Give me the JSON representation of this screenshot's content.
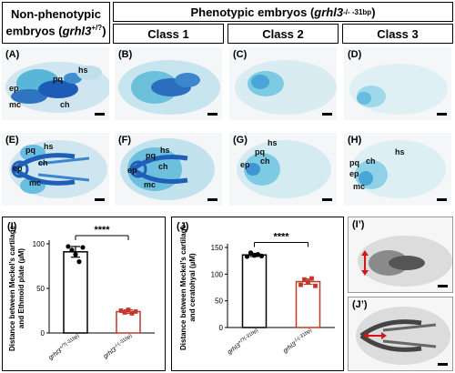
{
  "headers": {
    "non_phenotypic": "Non-phenotypic",
    "non_phenotypic_embryos": "embryos (",
    "non_phenotypic_gene": "grhl3",
    "non_phenotypic_sup": "+/?",
    "non_phenotypic_close": ")",
    "phenotypic_prefix": "Phenotypic embryos (",
    "phenotypic_gene": "grhl3",
    "phenotypic_sup": "-/- -31bp",
    "phenotypic_close": ")",
    "class1": "Class 1",
    "class2": "Class 2",
    "class3": "Class 3"
  },
  "panels": [
    {
      "label": "(A)",
      "annotations": [
        "ep",
        "pq",
        "hs",
        "mc",
        "ch"
      ]
    },
    {
      "label": "(B)",
      "annotations": []
    },
    {
      "label": "(C)",
      "annotations": []
    },
    {
      "label": "(D)",
      "annotations": []
    },
    {
      "label": "(E)",
      "annotations": [
        "hs",
        "pq",
        "ch",
        "ep",
        "mc"
      ]
    },
    {
      "label": "(F)",
      "annotations": [
        "hs",
        "pq",
        "ch",
        "ep",
        "mc"
      ]
    },
    {
      "label": "(G)",
      "annotations": [
        "hs",
        "pq",
        "ch",
        "ep"
      ]
    },
    {
      "label": "(H)",
      "annotations": [
        "hs",
        "pq",
        "ch",
        "ep",
        "mc"
      ]
    }
  ],
  "inset_labels": {
    "i_prime": "(I’)",
    "j_prime": "(J’)"
  },
  "chart_data": [
    {
      "type": "bar",
      "panel": "(I)",
      "ylabel": "Distance between Meckel’s cartilage and Ethmoid plate (µM)",
      "categories": [
        "grhl3+/?(-31bp)",
        "grhl3-/-(-31bp)"
      ],
      "category_gene": [
        "grhl3",
        "grhl3"
      ],
      "category_sup": [
        "+/?(-31bp)",
        "-/-(-31bp)"
      ],
      "values": [
        91,
        24
      ],
      "errors": [
        6,
        2
      ],
      "points": [
        [
          97,
          93,
          88,
          80,
          96
        ],
        [
          25,
          23,
          26,
          22,
          24
        ]
      ],
      "ylim": [
        0,
        100
      ],
      "yticks": [
        0,
        50,
        100
      ],
      "significance": "****",
      "colors": [
        "#000000",
        "#c0392b"
      ]
    },
    {
      "type": "bar",
      "panel": "(J)",
      "ylabel": "Distance between Meckel’s cartilage and ceratohyal (µM)",
      "categories": [
        "grhl3+/?(-31bp)",
        "grhl3-/-(-31bp)"
      ],
      "category_gene": [
        "grhl3",
        "grhl3"
      ],
      "category_sup": [
        "+/?(-31bp)",
        "-/-(-31bp)"
      ],
      "values": [
        136,
        86
      ],
      "errors": [
        3,
        5
      ],
      "points": [
        [
          133,
          140,
          135,
          137,
          134
        ],
        [
          80,
          90,
          85,
          92,
          78
        ]
      ],
      "ylim": [
        0,
        150
      ],
      "yticks": [
        0,
        50,
        100,
        150
      ],
      "significance": "****",
      "colors": [
        "#000000",
        "#c0392b"
      ]
    }
  ]
}
